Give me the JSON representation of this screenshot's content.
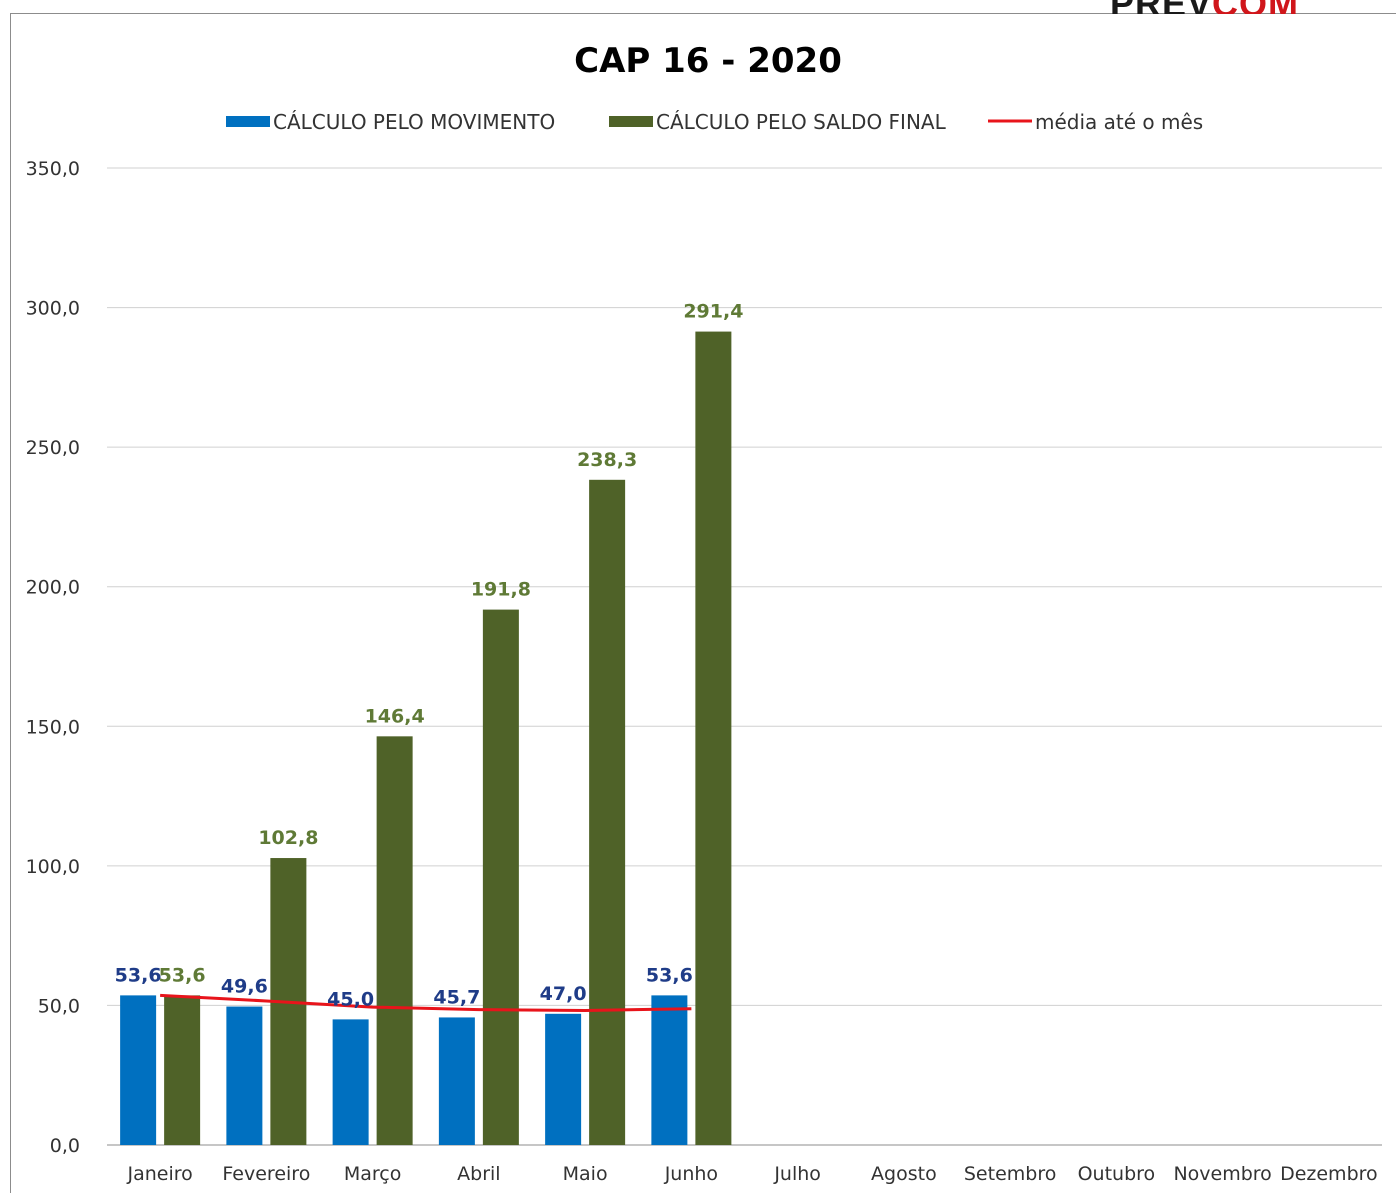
{
  "logo": {
    "part1": "PREV",
    "part2": "COM"
  },
  "chart_data": {
    "type": "bar",
    "title": "CAP 16 - 2020",
    "categories": [
      "Janeiro",
      "Fevereiro",
      "Março",
      "Abril",
      "Maio",
      "Junho",
      "Julho",
      "Agosto",
      "Setembro",
      "Outubro",
      "Novembro",
      "Dezembro"
    ],
    "series": [
      {
        "name": "CÁLCULO PELO MOVIMENTO",
        "type": "bar",
        "color": "#0070c0",
        "values": [
          53.6,
          49.6,
          45.0,
          45.7,
          47.0,
          53.6,
          null,
          null,
          null,
          null,
          null,
          null
        ],
        "labels": [
          "53,6",
          "49,6",
          "45,0",
          "45,7",
          "47,0",
          "53,6"
        ]
      },
      {
        "name": "CÁLCULO PELO SALDO FINAL",
        "type": "bar",
        "color": "#4f6228",
        "values": [
          53.6,
          102.8,
          146.4,
          191.8,
          238.3,
          291.4,
          null,
          null,
          null,
          null,
          null,
          null
        ],
        "labels": [
          "53,6",
          "102,8",
          "146,4",
          "191,8",
          "238,3",
          "291,4"
        ]
      },
      {
        "name": "média até o mês",
        "type": "line",
        "color": "#e8141b",
        "values": [
          53.6,
          51.6,
          49.4,
          48.5,
          48.2,
          48.8,
          null,
          null,
          null,
          null,
          null,
          null
        ]
      }
    ],
    "ylim": [
      0,
      350
    ],
    "yticks": [
      "0,0",
      "50,0",
      "100,0",
      "150,0",
      "200,0",
      "250,0",
      "300,0",
      "350,0"
    ],
    "ytick_values": [
      0,
      50,
      100,
      150,
      200,
      250,
      300,
      350
    ],
    "grid": true,
    "legend": "top",
    "xlabel": "",
    "ylabel": ""
  }
}
